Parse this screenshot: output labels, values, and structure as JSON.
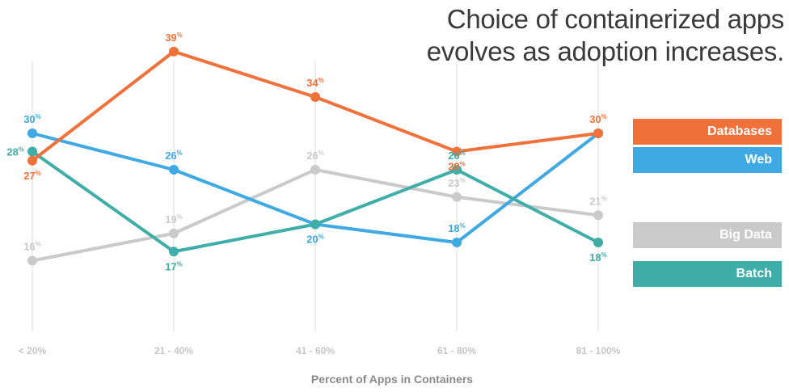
{
  "title": {
    "line1": "Choice of containerized apps",
    "line2": "evolves as adoption increases."
  },
  "chart_data": {
    "type": "line",
    "categories": [
      "< 20%",
      "21 - 40%",
      "41 - 60%",
      "61 - 80%",
      "81 - 100%"
    ],
    "xlabel": "Percent of Apps in Containers",
    "ylabel": "",
    "ylim": [
      10,
      42
    ],
    "grid": "vertical",
    "value_suffix": "%",
    "legend_position": "right",
    "series": [
      {
        "name": "Databases",
        "color": "#f07139",
        "values": [
          27,
          39,
          34,
          28,
          30
        ],
        "label_pos": [
          "below",
          "above",
          "above",
          "below",
          "above"
        ]
      },
      {
        "name": "Web",
        "color": "#3fa9e3",
        "values": [
          30,
          26,
          20,
          18,
          30
        ],
        "label_pos": [
          "above",
          "above",
          "below",
          "above",
          "none"
        ]
      },
      {
        "name": "Big Data",
        "color": "#cbcaca",
        "values": [
          16,
          19,
          26,
          23,
          21
        ],
        "label_pos": [
          "above",
          "above",
          "above",
          "above",
          "above"
        ]
      },
      {
        "name": "Batch",
        "color": "#3fada8",
        "values": [
          28,
          17,
          20,
          26,
          18
        ],
        "label_pos": [
          "left",
          "below",
          "none",
          "above",
          "below"
        ]
      }
    ]
  }
}
